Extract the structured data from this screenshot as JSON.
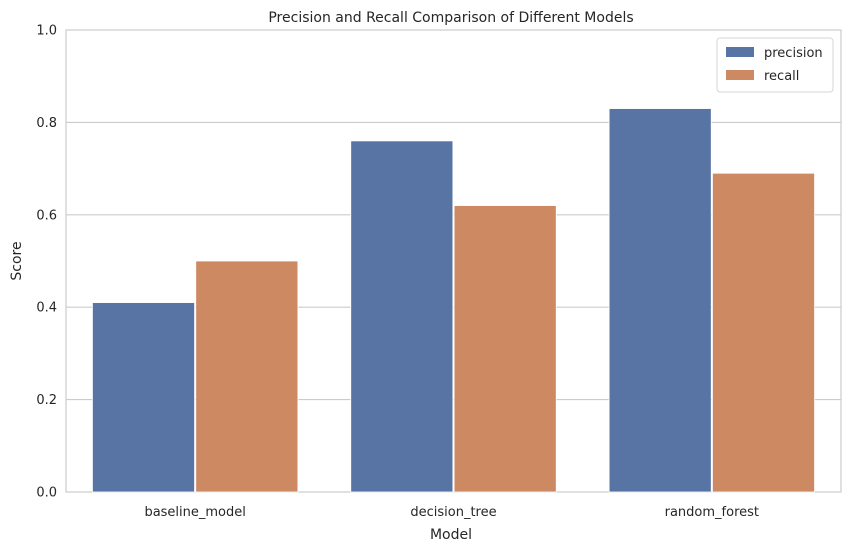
{
  "chart_data": {
    "type": "bar",
    "title": "Precision and Recall Comparison of Different Models",
    "xlabel": "Model",
    "ylabel": "Score",
    "categories": [
      "baseline_model",
      "decision_tree",
      "random_forest"
    ],
    "series": [
      {
        "name": "precision",
        "values": [
          0.41,
          0.76,
          0.83
        ],
        "color": "#5874a5"
      },
      {
        "name": "recall",
        "values": [
          0.5,
          0.62,
          0.69
        ],
        "color": "#cc8962"
      }
    ],
    "ylim": [
      0,
      1.0
    ],
    "yticks": [
      "0.0",
      "0.2",
      "0.4",
      "0.6",
      "0.8",
      "1.0"
    ],
    "grid": "horizontal",
    "legend_position": "top-right"
  }
}
